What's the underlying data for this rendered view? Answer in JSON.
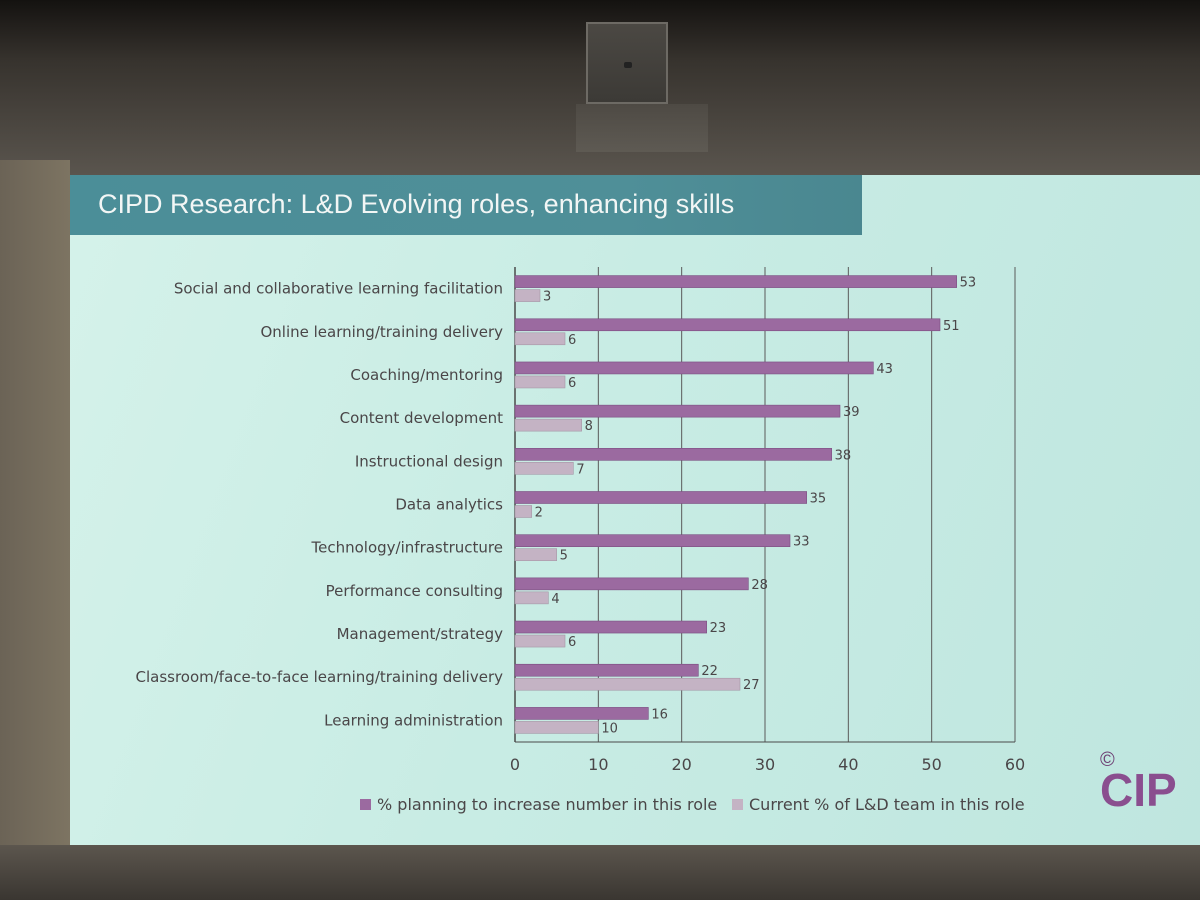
{
  "slide": {
    "title": "CIPD Research: L&D Evolving roles, enhancing skills",
    "logo_text": "CIP",
    "logo_symbol": "©"
  },
  "chart_data": {
    "type": "bar",
    "orientation": "horizontal",
    "title": "CIPD Research: L&D Evolving roles, enhancing skills",
    "categories": [
      "Social and collaborative learning facilitation",
      "Online learning/training delivery",
      "Coaching/mentoring",
      "Content development",
      "Instructional design",
      "Data analytics",
      "Technology/infrastructure",
      "Performance consulting",
      "Management/strategy",
      "Classroom/face-to-face learning/training delivery",
      "Learning administration"
    ],
    "series": [
      {
        "name": "% planning to increase number in this role",
        "color": "#9b6aa0",
        "values": [
          53,
          51,
          43,
          39,
          38,
          35,
          33,
          28,
          23,
          22,
          16
        ]
      },
      {
        "name": "Current % of L&D team in this role",
        "color": "#c4b3c4",
        "values": [
          3,
          6,
          6,
          8,
          7,
          2,
          5,
          4,
          6,
          27,
          10
        ]
      }
    ],
    "xlim": [
      0,
      60
    ],
    "xticks": [
      0,
      10,
      20,
      30,
      40,
      50,
      60
    ],
    "grid": "vertical",
    "legend": "bottom"
  }
}
